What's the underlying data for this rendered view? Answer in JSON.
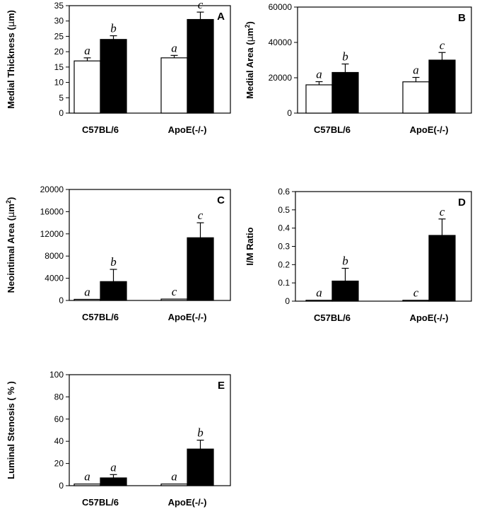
{
  "chart_data": [
    {
      "type": "bar",
      "panel": "A",
      "ylabel": "Medial Thickness (µm)",
      "ylabel_parts": [
        "Medial Thickness (",
        "µ",
        "m)"
      ],
      "ylim": [
        0,
        35
      ],
      "yticks": [
        0,
        5,
        10,
        15,
        20,
        25,
        30,
        35
      ],
      "categories": [
        "C57BL/6",
        "ApoE(-/-)"
      ],
      "series": [
        {
          "style": "open",
          "values": [
            17,
            18
          ],
          "errors": [
            1,
            0.8
          ],
          "sig": [
            "a",
            "a"
          ]
        },
        {
          "style": "filled",
          "values": [
            24,
            30.5
          ],
          "errors": [
            1.2,
            2.4
          ],
          "sig": [
            "b",
            "c"
          ]
        }
      ]
    },
    {
      "type": "bar",
      "panel": "B",
      "ylabel": "Medial Area (µm²)",
      "ylabel_parts": [
        "Medial Area  (",
        "µ",
        "m",
        "2",
        ")"
      ],
      "ylim": [
        0,
        60000
      ],
      "yticks": [
        0,
        20000,
        40000,
        60000
      ],
      "categories": [
        "C57BL/6",
        "ApoE(-/-)"
      ],
      "series": [
        {
          "style": "open",
          "values": [
            16000,
            17700
          ],
          "errors": [
            1800,
            2500
          ],
          "sig": [
            "a",
            "a"
          ]
        },
        {
          "style": "filled",
          "values": [
            23000,
            30000
          ],
          "errors": [
            4800,
            4300
          ],
          "sig": [
            "b",
            "c"
          ]
        }
      ]
    },
    {
      "type": "bar",
      "panel": "C",
      "ylabel": "Neointimal Area (µm²)",
      "ylabel_parts": [
        "Neointimal Area (",
        "µ",
        "m",
        "2",
        ")"
      ],
      "ylim": [
        0,
        20000
      ],
      "yticks": [
        0,
        4000,
        8000,
        12000,
        16000,
        20000
      ],
      "categories": [
        "C57BL/6",
        "ApoE(-/-)"
      ],
      "series": [
        {
          "style": "open",
          "values": [
            200,
            250
          ],
          "errors": [
            0,
            0
          ],
          "sig": [
            "a",
            "c"
          ]
        },
        {
          "style": "filled",
          "values": [
            3400,
            11300
          ],
          "errors": [
            2200,
            2700
          ],
          "sig": [
            "b",
            "c"
          ]
        }
      ]
    },
    {
      "type": "bar",
      "panel": "D",
      "ylabel": "I/M Ratio",
      "ylabel_parts": [
        "I/M Ratio"
      ],
      "ylim": [
        0,
        0.6
      ],
      "yticks": [
        0,
        0.1,
        0.2,
        0.3,
        0.4,
        0.5,
        0.6
      ],
      "categories": [
        "C57BL/6",
        "ApoE(-/-)"
      ],
      "series": [
        {
          "style": "open",
          "values": [
            0.005,
            0.005
          ],
          "errors": [
            0,
            0
          ],
          "sig": [
            "a",
            "c"
          ]
        },
        {
          "style": "filled",
          "values": [
            0.11,
            0.36
          ],
          "errors": [
            0.07,
            0.09
          ],
          "sig": [
            "b",
            "c"
          ]
        }
      ]
    },
    {
      "type": "bar",
      "panel": "E",
      "ylabel": "Luminal Stenosis ( % )",
      "ylabel_parts": [
        "Luminal Stenosis ( % )"
      ],
      "ylim": [
        0,
        100
      ],
      "yticks": [
        0,
        20,
        40,
        60,
        80,
        100
      ],
      "categories": [
        "C57BL/6",
        "ApoE(-/-)"
      ],
      "series": [
        {
          "style": "open",
          "values": [
            1.5,
            1.5
          ],
          "errors": [
            0,
            0
          ],
          "sig": [
            "a",
            "a"
          ]
        },
        {
          "style": "filled",
          "values": [
            7,
            33
          ],
          "errors": [
            3,
            8
          ],
          "sig": [
            "a",
            "b"
          ]
        }
      ]
    }
  ]
}
